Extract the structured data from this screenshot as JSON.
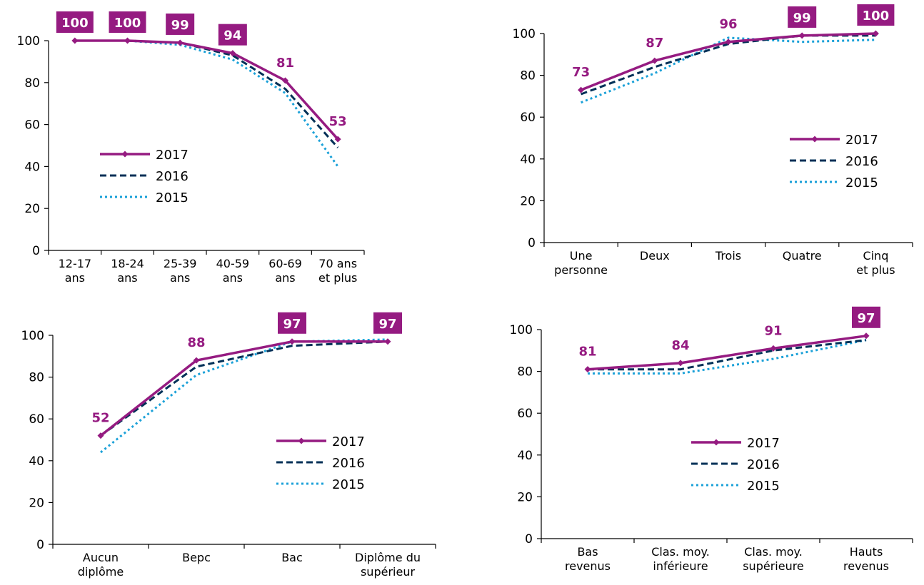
{
  "colors": {
    "series_2017": "#951b81",
    "series_2016": "#003057",
    "series_2015": "#1ba1d8",
    "label_box_text": "#ffffff",
    "axis": "#000000"
  },
  "chart_data": [
    {
      "type": "line",
      "categories": [
        "12-17 ans",
        "18-24 ans",
        "25-39 ans",
        "40-59 ans",
        "60-69 ans",
        "70 ans et plus"
      ],
      "series": [
        {
          "name": "2017",
          "values": [
            100,
            100,
            99,
            94,
            81,
            53
          ]
        },
        {
          "name": "2016",
          "values": [
            100,
            100,
            99,
            93,
            77,
            49
          ]
        },
        {
          "name": "2015",
          "values": [
            100,
            100,
            98,
            91,
            75,
            40
          ]
        }
      ],
      "data_labels": [
        "100",
        "100",
        "99",
        "94",
        "81",
        "53"
      ],
      "data_label_boxed": [
        true,
        true,
        true,
        true,
        false,
        false
      ],
      "ylim": [
        0,
        100
      ],
      "yticks": [
        0,
        20,
        40,
        60,
        80,
        100
      ],
      "legend": [
        "2017",
        "2016",
        "2015"
      ],
      "legend_position": "left-middle",
      "grid": false
    },
    {
      "type": "line",
      "categories": [
        "Une personne",
        "Deux",
        "Trois",
        "Quatre",
        "Cinq et plus"
      ],
      "series": [
        {
          "name": "2017",
          "values": [
            73,
            87,
            96,
            99,
            100
          ]
        },
        {
          "name": "2016",
          "values": [
            71,
            84,
            95,
            99,
            99
          ]
        },
        {
          "name": "2015",
          "values": [
            67,
            81,
            98,
            96,
            97
          ]
        }
      ],
      "data_labels": [
        "73",
        "87",
        "96",
        "99",
        "100"
      ],
      "data_label_boxed": [
        false,
        false,
        false,
        true,
        true
      ],
      "ylim": [
        0,
        100
      ],
      "yticks": [
        0,
        20,
        40,
        60,
        80,
        100
      ],
      "legend": [
        "2017",
        "2016",
        "2015"
      ],
      "legend_position": "right-middle",
      "grid": false
    },
    {
      "type": "line",
      "categories": [
        "Aucun diplôme",
        "Bepc",
        "Bac",
        "Diplôme du supérieur"
      ],
      "series": [
        {
          "name": "2017",
          "values": [
            52,
            88,
            97,
            97
          ]
        },
        {
          "name": "2016",
          "values": [
            52,
            85,
            95,
            97
          ]
        },
        {
          "name": "2015",
          "values": [
            44,
            81,
            97,
            98
          ]
        }
      ],
      "data_labels": [
        "52",
        "88",
        "97",
        "97"
      ],
      "data_label_boxed": [
        false,
        false,
        true,
        true
      ],
      "ylim": [
        0,
        100
      ],
      "yticks": [
        0,
        20,
        40,
        60,
        80,
        100
      ],
      "legend": [
        "2017",
        "2016",
        "2015"
      ],
      "legend_position": "right-middle",
      "grid": false
    },
    {
      "type": "line",
      "categories": [
        "Bas revenus",
        "Clas. moy. inférieure",
        "Clas. moy. supérieure",
        "Hauts revenus"
      ],
      "series": [
        {
          "name": "2017",
          "values": [
            81,
            84,
            91,
            97
          ]
        },
        {
          "name": "2016",
          "values": [
            81,
            81,
            90,
            95
          ]
        },
        {
          "name": "2015",
          "values": [
            79,
            79,
            86,
            95
          ]
        }
      ],
      "data_labels": [
        "81",
        "84",
        "91",
        "97"
      ],
      "data_label_boxed": [
        false,
        false,
        false,
        true
      ],
      "ylim": [
        0,
        100
      ],
      "yticks": [
        0,
        20,
        40,
        60,
        80,
        100
      ],
      "legend": [
        "2017",
        "2016",
        "2015"
      ],
      "legend_position": "center-middle",
      "grid": false
    }
  ]
}
